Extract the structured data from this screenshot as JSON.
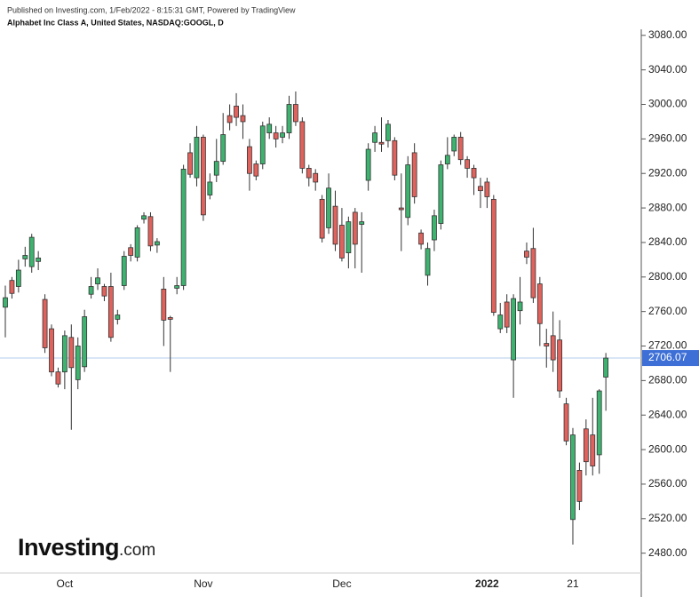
{
  "chart_data": {
    "type": "candlestick",
    "header": "Published on Investing.com, 1/Feb/2022 - 8:15:31 GMT, Powered by TradingView",
    "title": "Alphabet Inc Class A, United States, NASDAQ:GOOGL, D",
    "logo": {
      "name": "Investing",
      "suffix": ".com"
    },
    "categories": [
      null,
      null,
      null,
      null,
      null,
      null,
      null,
      null,
      null,
      "Oct",
      null,
      null,
      null,
      null,
      null,
      null,
      null,
      null,
      null,
      null,
      null,
      null,
      null,
      null,
      null,
      null,
      null,
      null,
      null,
      null,
      "Nov",
      null,
      null,
      null,
      null,
      null,
      null,
      null,
      null,
      null,
      null,
      null,
      null,
      null,
      null,
      null,
      null,
      null,
      null,
      null,
      null,
      "Dec",
      null,
      null,
      null,
      null,
      null,
      null,
      null,
      null,
      null,
      null,
      null,
      null,
      null,
      null,
      null,
      null,
      null,
      null,
      null,
      null,
      null,
      "2022",
      null,
      null,
      null,
      null,
      null,
      null,
      null,
      null,
      null,
      null,
      null,
      null,
      "21",
      null,
      null,
      null,
      null,
      null
    ],
    "open": [
      2765,
      2796,
      2789,
      2821,
      2812,
      2818,
      2774,
      2740,
      2690,
      2690,
      2730,
      2681,
      2696,
      2780,
      2792,
      2789,
      2789,
      2751,
      2790,
      2834,
      2823,
      2867,
      2870,
      2837,
      2786,
      2753,
      2787,
      2790,
      2944,
      2915,
      2962,
      2895,
      2918,
      2934,
      2987,
      2998,
      2987,
      2951,
      2931,
      2931,
      2967,
      2967,
      2962,
      2967,
      3000,
      2980,
      2926,
      2920,
      2890,
      2857,
      2882,
      2860,
      2828,
      2875,
      2861,
      2912,
      2956,
      2956,
      2958,
      2958,
      2880,
      2869,
      2944,
      2851,
      2802,
      2843,
      2862,
      2931,
      2946,
      2962,
      2936,
      2926,
      2905,
      2910,
      2890,
      2740,
      2771,
      2704,
      2761,
      2830,
      2833,
      2792,
      2723,
      2732,
      2727,
      2653,
      2519,
      2576,
      2624,
      2617,
      2594,
      2684
    ],
    "high": [
      2790,
      2800,
      2820,
      2835,
      2850,
      2830,
      2780,
      2745,
      2695,
      2738,
      2745,
      2730,
      2762,
      2800,
      2810,
      2792,
      2805,
      2762,
      2830,
      2838,
      2860,
      2875,
      2875,
      2845,
      2800,
      2755,
      2800,
      2930,
      2955,
      2975,
      2965,
      2920,
      2960,
      2990,
      3000,
      3013,
      3000,
      2960,
      2935,
      2980,
      2985,
      2975,
      2975,
      3010,
      3015,
      2985,
      2930,
      2925,
      2895,
      2920,
      2900,
      2880,
      2870,
      2880,
      2875,
      2955,
      2975,
      2985,
      2982,
      2962,
      2920,
      2940,
      2955,
      2855,
      2840,
      2878,
      2935,
      2962,
      2965,
      2968,
      2940,
      2930,
      2915,
      2915,
      2895,
      2770,
      2780,
      2780,
      2800,
      2840,
      2857,
      2800,
      2740,
      2760,
      2750,
      2660,
      2625,
      2585,
      2635,
      2660,
      2670,
      2712
    ],
    "low": [
      2730,
      2775,
      2782,
      2812,
      2805,
      2808,
      2712,
      2685,
      2672,
      2670,
      2623,
      2670,
      2690,
      2775,
      2785,
      2772,
      2725,
      2745,
      2785,
      2818,
      2818,
      2862,
      2830,
      2828,
      2720,
      2690,
      2780,
      2785,
      2915,
      2905,
      2865,
      2890,
      2910,
      2930,
      2970,
      2975,
      2960,
      2900,
      2912,
      2925,
      2960,
      2950,
      2955,
      2960,
      2975,
      2920,
      2905,
      2900,
      2840,
      2850,
      2830,
      2818,
      2810,
      2810,
      2805,
      2900,
      2945,
      2945,
      2950,
      2912,
      2830,
      2860,
      2885,
      2832,
      2790,
      2830,
      2855,
      2925,
      2940,
      2930,
      2915,
      2895,
      2880,
      2880,
      2755,
      2735,
      2735,
      2660,
      2745,
      2815,
      2770,
      2720,
      2695,
      2690,
      2660,
      2605,
      2490,
      2530,
      2570,
      2570,
      2572,
      2645
    ],
    "close": [
      2776,
      2781,
      2808,
      2825,
      2846,
      2822,
      2718,
      2690,
      2676,
      2732,
      2695,
      2720,
      2754,
      2789,
      2799,
      2778,
      2730,
      2756,
      2824,
      2825,
      2857,
      2871,
      2836,
      2841,
      2750,
      2751,
      2790,
      2925,
      2919,
      2962,
      2872,
      2910,
      2934,
      2965,
      2979,
      2985,
      2980,
      2920,
      2917,
      2975,
      2977,
      2960,
      2967,
      3000,
      2980,
      2926,
      2915,
      2910,
      2845,
      2903,
      2838,
      2822,
      2864,
      2838,
      2864,
      2948,
      2967,
      2954,
      2977,
      2918,
      2878,
      2930,
      2893,
      2838,
      2833,
      2871,
      2930,
      2941,
      2962,
      2936,
      2926,
      2915,
      2900,
      2893,
      2759,
      2756,
      2742,
      2775,
      2771,
      2823,
      2776,
      2746,
      2720,
      2704,
      2668,
      2610,
      2617,
      2540,
      2586,
      2581,
      2668,
      2706.07
    ],
    "up_color": "#3db36f",
    "down_color": "#e0625c",
    "last_price": 2706.07,
    "last_price_color": "#3d6fd6",
    "ylim": [
      2457,
      3087
    ],
    "yticks": [
      {
        "value": 2480,
        "label": "2480.00"
      },
      {
        "value": 2520,
        "label": "2520.00"
      },
      {
        "value": 2560,
        "label": "2560.00"
      },
      {
        "value": 2600,
        "label": "2600.00"
      },
      {
        "value": 2640,
        "label": "2640.00"
      },
      {
        "value": 2680,
        "label": "2680.00"
      },
      {
        "value": 2720,
        "label": "2720.00"
      },
      {
        "value": 2760,
        "label": "2760.00"
      },
      {
        "value": 2800,
        "label": "2800.00"
      },
      {
        "value": 2840,
        "label": "2840.00"
      },
      {
        "value": 2880,
        "label": "2880.00"
      },
      {
        "value": 2920,
        "label": "2920.00"
      },
      {
        "value": 2960,
        "label": "2960.00"
      },
      {
        "value": 3000,
        "label": "3000.00"
      },
      {
        "value": 3040,
        "label": "3040.00"
      },
      {
        "value": 3080,
        "label": "3080.00"
      }
    ]
  }
}
